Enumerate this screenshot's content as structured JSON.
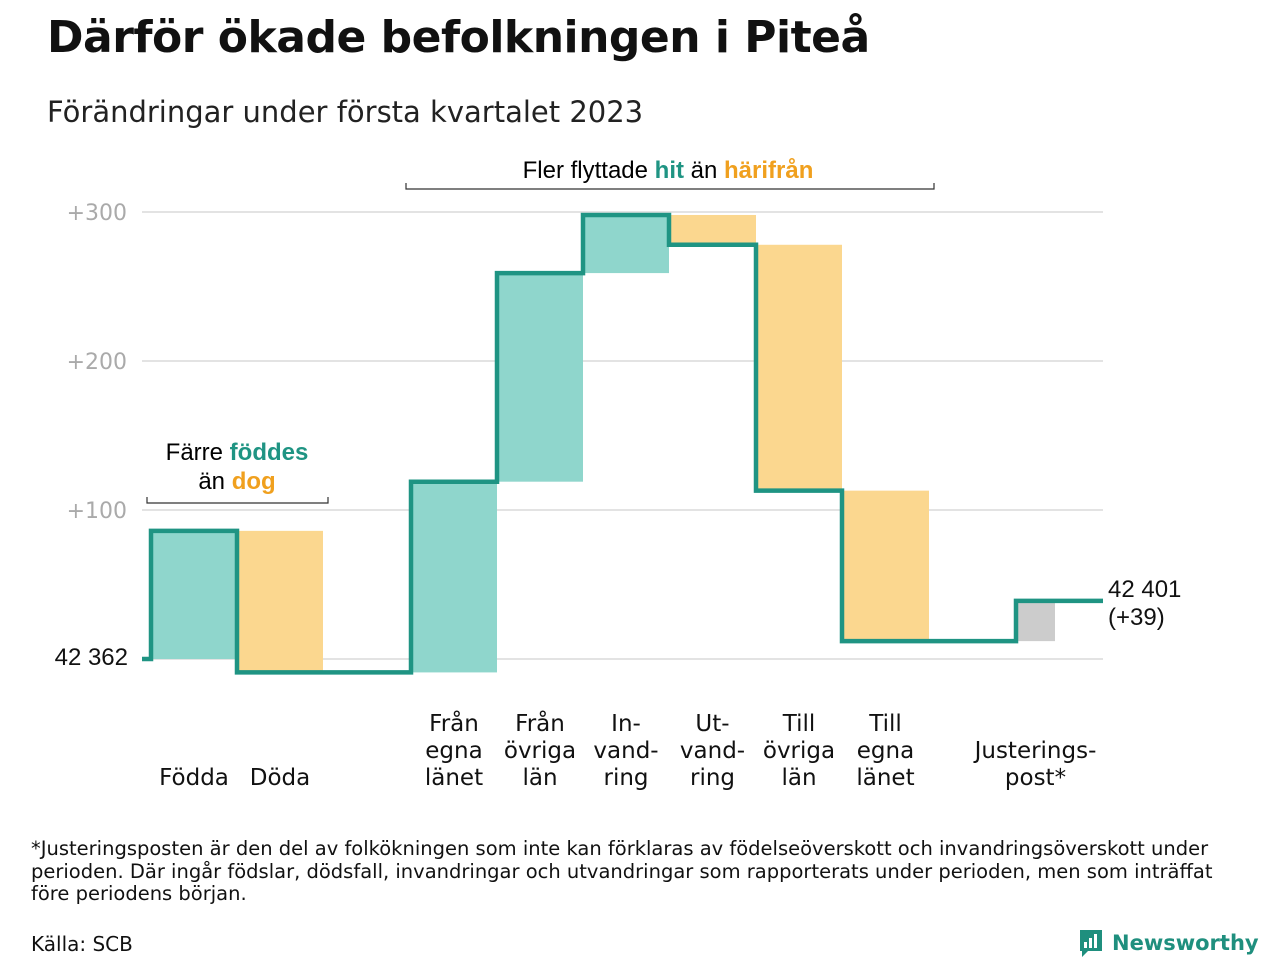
{
  "title": "Därför ökade befolkningen i Piteå",
  "subtitle": "Förändringar under första kvartalet 2023",
  "annotations": {
    "births_deaths": {
      "line1_prefix": "Färre ",
      "line1_highlight": "föddes",
      "line2_prefix": "än ",
      "line2_highlight": "dog"
    },
    "migration": {
      "prefix": "Fler flyttade ",
      "highlight1": "hit",
      "middle": " än ",
      "highlight2": "härifrån"
    }
  },
  "start_label": "42 362",
  "end_label_value": "42 401",
  "end_label_change": "(+39)",
  "footnote": "*Justeringsposten är den del av folkökningen som inte kan förklaras av födelseöverskott och invandringsöverskott under perioden. Där ingår födslar, dödsfall, invandringar och utvandringar som rapporterats under perioden, men som inträffat före periodens början.",
  "source": "Källa: SCB",
  "brand": "Newsworthy",
  "colors": {
    "increase": "#8fd6cc",
    "decrease": "#fbd78f",
    "adjustment": "#cccccc",
    "line": "#1f9483",
    "grid": "#e3e3e3",
    "tick": "#aaaaaa",
    "teal_text": "#1f9483",
    "orange_text": "#f0a01e"
  },
  "chart_data": {
    "type": "waterfall",
    "start_total": 42362,
    "end_total": 42401,
    "net_change": 39,
    "y_ticks": [
      "+100",
      "+200",
      "+300"
    ],
    "y_tick_values": [
      100,
      200,
      300
    ],
    "ylim": [
      -10,
      300
    ],
    "grid": true,
    "steps": [
      {
        "label_lines": [
          "Födda"
        ],
        "delta": 86,
        "kind": "increase"
      },
      {
        "label_lines": [
          "Döda"
        ],
        "delta": -95,
        "kind": "decrease"
      },
      {
        "label_lines": [
          "Från",
          "egna",
          "länet"
        ],
        "delta": 128,
        "kind": "increase"
      },
      {
        "label_lines": [
          "Från",
          "övriga",
          "län"
        ],
        "delta": 140,
        "kind": "increase"
      },
      {
        "label_lines": [
          "In-",
          "vand-",
          "ring"
        ],
        "delta": 39,
        "kind": "increase"
      },
      {
        "label_lines": [
          "Ut-",
          "vand-",
          "ring"
        ],
        "delta": -20,
        "kind": "decrease"
      },
      {
        "label_lines": [
          "Till",
          "övriga",
          "län"
        ],
        "delta": -165,
        "kind": "decrease"
      },
      {
        "label_lines": [
          "Till",
          "egna",
          "länet"
        ],
        "delta": -101,
        "kind": "decrease"
      },
      {
        "label_lines": [
          "Justerings-",
          "post*"
        ],
        "delta": 27,
        "kind": "adjustment"
      }
    ]
  }
}
